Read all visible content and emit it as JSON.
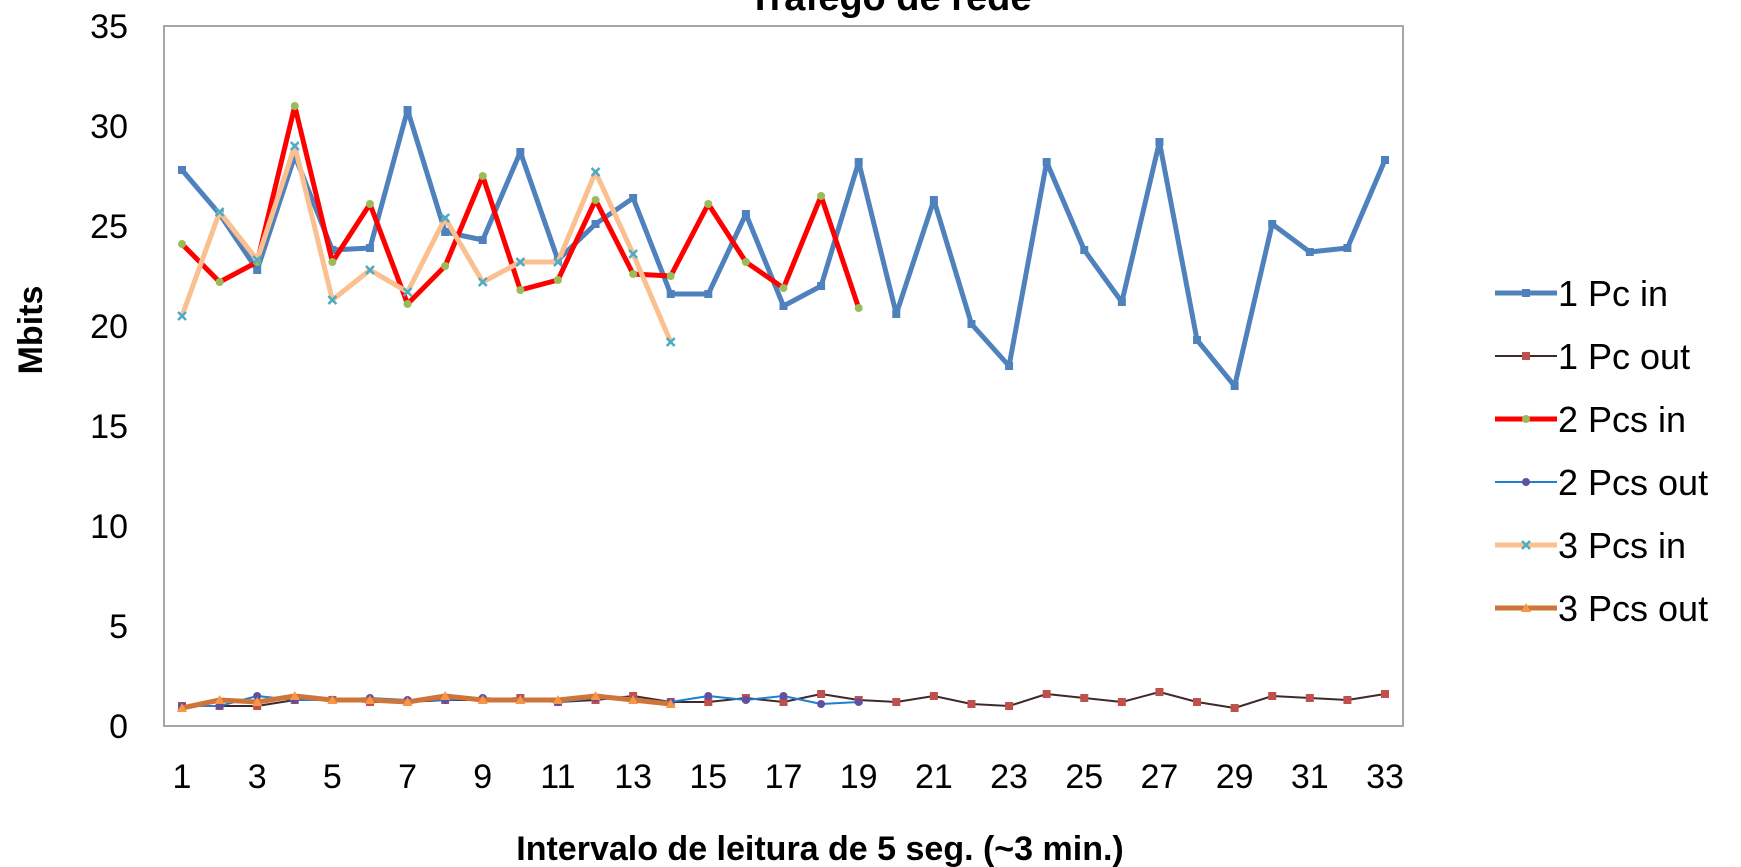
{
  "chart_data": {
    "type": "line",
    "title": "Tráfego de rede",
    "xlabel": "Intervalo de leitura de 5 seg. (~3 min.)",
    "ylabel": "Mbits",
    "ylim": [
      0,
      35
    ],
    "yticks": [
      0,
      5,
      10,
      15,
      20,
      25,
      30,
      35
    ],
    "xlim": [
      1,
      33
    ],
    "xticks": [
      1,
      3,
      5,
      7,
      9,
      11,
      13,
      15,
      17,
      19,
      21,
      23,
      25,
      27,
      29,
      31,
      33
    ],
    "grid": false,
    "legend": "right",
    "series": [
      {
        "name": "1 Pc in",
        "color": "#4F81BD",
        "width": 5,
        "marker": "square",
        "x": [
          1,
          2,
          3,
          4,
          5,
          6,
          7,
          8,
          9,
          10,
          11,
          12,
          13,
          14,
          15,
          16,
          17,
          18,
          19,
          20,
          21,
          22,
          23,
          24,
          25,
          26,
          27,
          28,
          29,
          30,
          31,
          32,
          33
        ],
        "values": [
          27.8,
          25.6,
          22.8,
          28.5,
          23.8,
          23.9,
          30.8,
          24.7,
          24.3,
          28.7,
          23.3,
          25.1,
          26.4,
          21.6,
          21.6,
          25.6,
          21.0,
          22.0,
          28.2,
          20.6,
          26.3,
          20.1,
          18.0,
          28.2,
          23.8,
          21.2,
          29.2,
          19.3,
          17.0,
          25.1,
          23.7,
          23.9,
          28.3
        ]
      },
      {
        "name": "1 Pc out",
        "color": "#3F2A2A",
        "width": 2,
        "marker": "square",
        "markerColor": "#C0504D",
        "x": [
          1,
          2,
          3,
          4,
          5,
          6,
          7,
          8,
          9,
          10,
          11,
          12,
          13,
          14,
          15,
          16,
          17,
          18,
          19,
          20,
          21,
          22,
          23,
          24,
          25,
          26,
          27,
          28,
          29,
          30,
          31,
          32,
          33
        ],
        "values": [
          1.0,
          1.0,
          1.0,
          1.3,
          1.3,
          1.2,
          1.2,
          1.3,
          1.3,
          1.4,
          1.2,
          1.3,
          1.5,
          1.2,
          1.2,
          1.4,
          1.2,
          1.6,
          1.3,
          1.2,
          1.5,
          1.1,
          1.0,
          1.6,
          1.4,
          1.2,
          1.7,
          1.2,
          0.9,
          1.5,
          1.4,
          1.3,
          1.6
        ]
      },
      {
        "name": "2 Pcs in",
        "color": "#FF0000",
        "width": 5,
        "marker": "circle",
        "markerColor": "#9BBB59",
        "x": [
          1,
          2,
          3,
          4,
          5,
          6,
          7,
          8,
          9,
          10,
          11,
          12,
          13,
          14,
          15,
          16,
          17,
          18,
          19
        ],
        "values": [
          24.1,
          22.2,
          23.2,
          31.0,
          23.2,
          26.1,
          21.1,
          23.0,
          27.5,
          21.8,
          22.3,
          26.3,
          22.6,
          22.5,
          26.1,
          23.2,
          21.9,
          26.5,
          20.9
        ]
      },
      {
        "name": "2 Pcs out",
        "color": "#1F7FD0",
        "width": 2,
        "marker": "circle",
        "markerColor": "#6050A0",
        "x": [
          1,
          2,
          3,
          4,
          5,
          6,
          7,
          8,
          9,
          10,
          11,
          12,
          13,
          14,
          15,
          16,
          17,
          18,
          19
        ],
        "values": [
          1.0,
          1.0,
          1.5,
          1.3,
          1.3,
          1.4,
          1.3,
          1.3,
          1.4,
          1.3,
          1.2,
          1.4,
          1.3,
          1.2,
          1.5,
          1.3,
          1.5,
          1.1,
          1.2
        ]
      },
      {
        "name": "3 Pcs in",
        "color": "#FAC090",
        "width": 5,
        "marker": "x",
        "markerColor": "#4BACC6",
        "x": [
          1,
          2,
          3,
          4,
          5,
          6,
          7,
          8,
          9,
          10,
          11,
          12,
          13,
          14
        ],
        "values": [
          20.5,
          25.7,
          23.3,
          29.0,
          21.3,
          22.8,
          21.7,
          25.4,
          22.2,
          23.2,
          23.2,
          27.7,
          23.6,
          19.2
        ]
      },
      {
        "name": "3 Pcs out",
        "color": "#D0753A",
        "width": 5,
        "marker": "triangle",
        "markerColor": "#F79646",
        "x": [
          1,
          2,
          3,
          4,
          5,
          6,
          7,
          8,
          9,
          10,
          11,
          12,
          13,
          14
        ],
        "values": [
          0.9,
          1.3,
          1.2,
          1.5,
          1.3,
          1.3,
          1.2,
          1.5,
          1.3,
          1.3,
          1.3,
          1.5,
          1.3,
          1.1
        ]
      }
    ]
  }
}
